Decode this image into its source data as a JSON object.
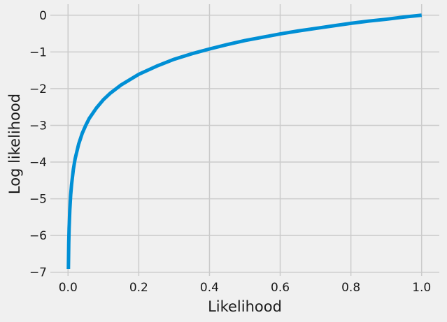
{
  "colors": {
    "background": "#f0f0f0",
    "grid": "#cbcbcb",
    "line": "#008fd5",
    "text": "#1a1a1a"
  },
  "chart_data": {
    "type": "line",
    "title": "",
    "xlabel": "Likelihood",
    "ylabel": "Log likelihood",
    "xlim": [
      -0.05,
      1.05
    ],
    "ylim": [
      -7.1,
      0.3
    ],
    "grid": true,
    "xticks": [
      0.0,
      0.2,
      0.4,
      0.6,
      0.8,
      1.0
    ],
    "xtick_labels": [
      "0.0",
      "0.2",
      "0.4",
      "0.6",
      "0.8",
      "1.0"
    ],
    "yticks": [
      0,
      -1,
      -2,
      -3,
      -4,
      -5,
      -6,
      -7
    ],
    "ytick_labels": [
      "0",
      "−1",
      "−2",
      "−3",
      "−4",
      "−5",
      "−6",
      "−7"
    ],
    "series": [
      {
        "x": [
          0.001,
          0.002,
          0.003,
          0.005,
          0.0075,
          0.01,
          0.015,
          0.02,
          0.03,
          0.04,
          0.05,
          0.06,
          0.08,
          0.1,
          0.12,
          0.15,
          0.2,
          0.25,
          0.3,
          0.35,
          0.4,
          0.45,
          0.5,
          0.55,
          0.6,
          0.65,
          0.7,
          0.75,
          0.8,
          0.85,
          0.9,
          0.95,
          1.0
        ],
        "y": [
          -6.91,
          -6.21,
          -5.81,
          -5.3,
          -4.89,
          -4.61,
          -4.2,
          -3.91,
          -3.51,
          -3.22,
          -3.0,
          -2.81,
          -2.53,
          -2.3,
          -2.12,
          -1.9,
          -1.61,
          -1.39,
          -1.2,
          -1.05,
          -0.92,
          -0.8,
          -0.69,
          -0.6,
          -0.51,
          -0.43,
          -0.36,
          -0.29,
          -0.22,
          -0.16,
          -0.11,
          -0.05,
          0.0
        ]
      }
    ]
  }
}
